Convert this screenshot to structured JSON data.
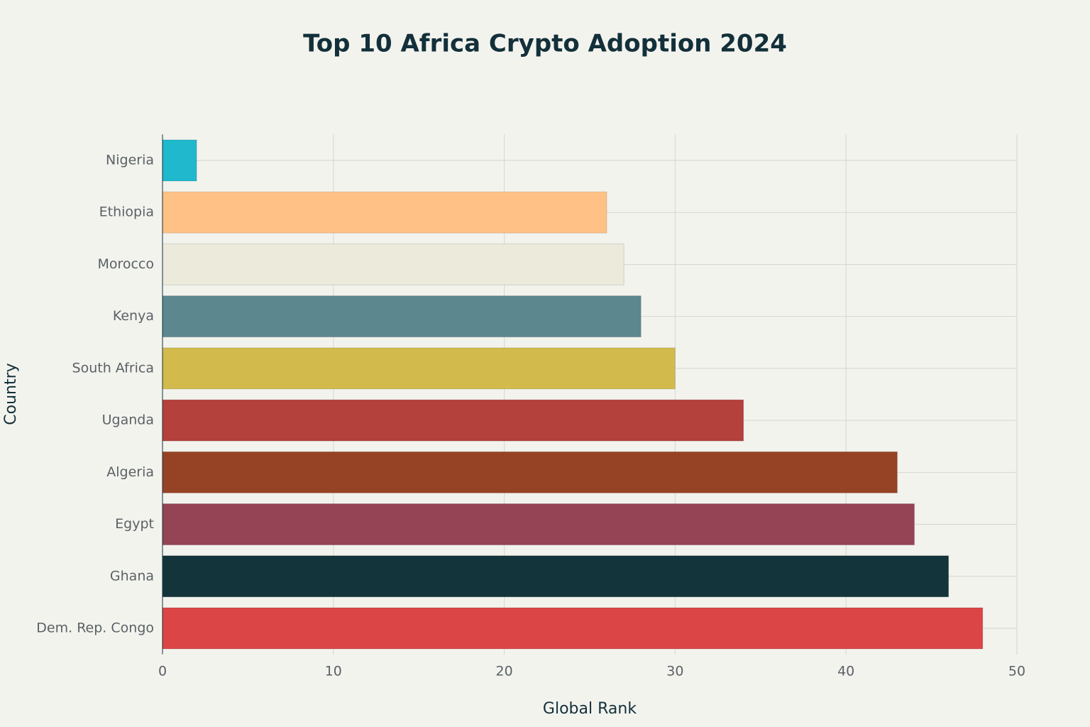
{
  "chart_data": {
    "type": "bar",
    "orientation": "horizontal",
    "title": "Top 10 Africa Crypto Adoption 2024",
    "x_label": "Global Rank",
    "y_label": "Country",
    "categories": [
      "Nigeria",
      "Ethiopia",
      "Morocco",
      "Kenya",
      "South Africa",
      "Uganda",
      "Algeria",
      "Egypt",
      "Ghana",
      "Dem. Rep. Congo"
    ],
    "values": [
      2,
      26,
      27,
      28,
      30,
      34,
      43,
      44,
      46,
      48
    ],
    "colors": [
      "#1fb8cd",
      "#ffc185",
      "#eceadb",
      "#5d878f",
      "#d2ba4c",
      "#b4413c",
      "#964325",
      "#944454",
      "#13343b",
      "#db4545"
    ],
    "xlim": [
      0,
      50
    ],
    "xticks": [
      0,
      10,
      20,
      30,
      40,
      50
    ],
    "grid": true
  }
}
